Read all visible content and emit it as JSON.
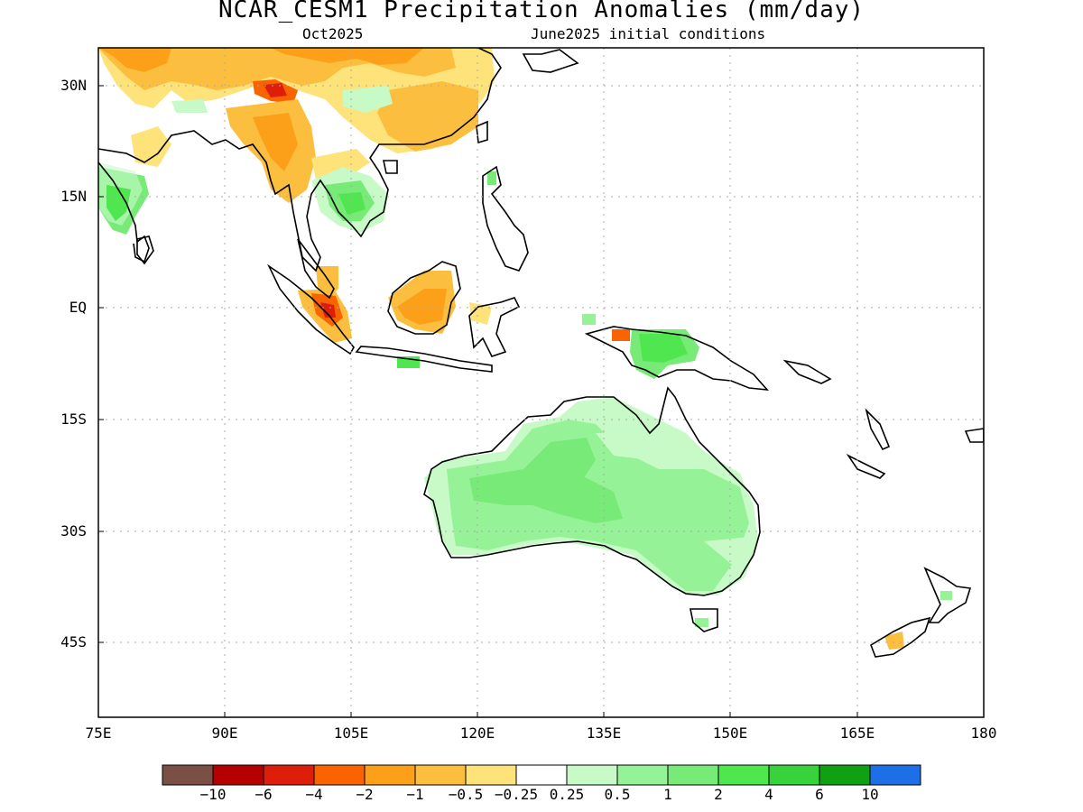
{
  "title": "NCAR_CESM1 Precipitation Anomalies (mm/day)",
  "subtitle_left": "Oct2025",
  "subtitle_right": "June2025 initial conditions",
  "map": {
    "region": "South/Southeast Asia, Maritime Continent, Australia, western Pacific",
    "lon_range": [
      75,
      180
    ],
    "lat_range": [
      -55,
      35
    ],
    "grid": true
  },
  "y_axis": {
    "ticks": [
      {
        "value": 30,
        "label": "30N"
      },
      {
        "value": 15,
        "label": "15N"
      },
      {
        "value": 0,
        "label": "EQ"
      },
      {
        "value": -15,
        "label": "15S"
      },
      {
        "value": -30,
        "label": "30S"
      },
      {
        "value": -45,
        "label": "45S"
      }
    ]
  },
  "x_axis": {
    "ticks": [
      {
        "value": 75,
        "label": "75E"
      },
      {
        "value": 90,
        "label": "90E"
      },
      {
        "value": 105,
        "label": "105E"
      },
      {
        "value": 120,
        "label": "120E"
      },
      {
        "value": 135,
        "label": "135E"
      },
      {
        "value": 150,
        "label": "150E"
      },
      {
        "value": 165,
        "label": "165E"
      },
      {
        "value": 180,
        "label": "180"
      }
    ]
  },
  "colorbar": {
    "colors": [
      "#7b5044",
      "#b40000",
      "#dc1e0a",
      "#fa6400",
      "#fca01a",
      "#fcbe3e",
      "#fee27a",
      "#ffffff",
      "#c8fac8",
      "#96f296",
      "#78ea78",
      "#50e650",
      "#37d23c",
      "#10a014",
      "#1e6ee6"
    ],
    "labels": [
      "−10",
      "−6",
      "−4",
      "−2",
      "−1",
      "−0.5",
      "−0.25",
      "0.25",
      "0.5",
      "1",
      "2",
      "4",
      "6",
      "10"
    ]
  },
  "anomaly_regions": [
    {
      "area": "Tibet / western China",
      "sign": "dry",
      "level": "-0.5 to -4"
    },
    {
      "area": "Eastern China",
      "sign": "dry",
      "level": "-0.5 to -1"
    },
    {
      "area": "Myanmar",
      "sign": "dry",
      "level": "-0.5 to -2"
    },
    {
      "area": "Western India",
      "sign": "wet",
      "level": "0.5 to 2"
    },
    {
      "area": "Thailand / Cambodia",
      "sign": "wet",
      "level": "0.5 to 2"
    },
    {
      "area": "Sumatra",
      "sign": "dry",
      "level": "-1 to -4"
    },
    {
      "area": "Borneo",
      "sign": "dry",
      "level": "-0.5 to -2"
    },
    {
      "area": "Java",
      "sign": "wet",
      "level": "1 to 2"
    },
    {
      "area": "New Guinea",
      "sign": "wet",
      "level": "1 to 4"
    },
    {
      "area": "Australia",
      "sign": "wet",
      "level": "0.25 to 2"
    },
    {
      "area": "New Zealand South Island",
      "sign": "dry",
      "level": "-0.5 to -1"
    }
  ]
}
